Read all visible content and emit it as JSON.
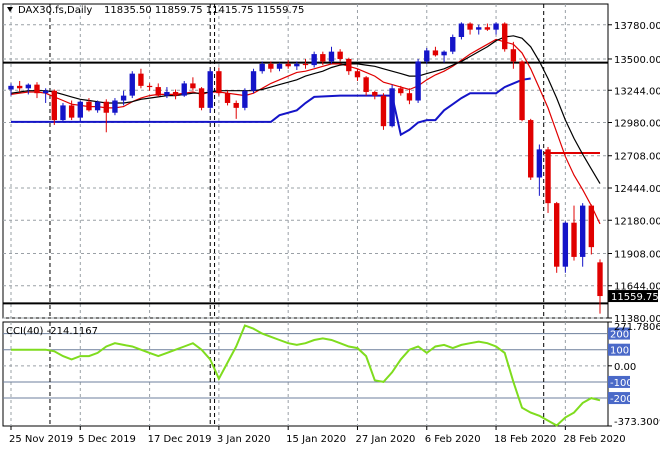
{
  "header": {
    "symbol": "DAX30.fs,Daily",
    "ohlc": "11835.50 11859.75 11415.75 11559.75"
  },
  "colors": {
    "bull": "#1414c8",
    "bear": "#e00000",
    "fast_ma": "#e00000",
    "slow_ma": "#000000",
    "support_line": "#1414c8",
    "cci": "#7fdc1e",
    "price_tag_bg": "#000000",
    "level_tag_bg": "#4a69c8"
  },
  "chart_data": [
    {
      "type": "candlestick",
      "title": "DAX30.fs,Daily",
      "ylim": [
        11380,
        13950
      ],
      "y_ticks": [
        "13780.00",
        "13500.00",
        "13244.00",
        "12980.00",
        "12708.00",
        "12444.00",
        "12180.00",
        "11908.00",
        "11644.00",
        "11380.00"
      ],
      "y_tick_values": [
        13780,
        13500,
        13244,
        12980,
        12708,
        12444,
        12180,
        11908,
        11644,
        11380
      ],
      "x_labels": [
        "25 Nov 2019",
        "5 Dec 2019",
        "17 Dec 2019",
        "3 Jan 2020",
        "15 Jan 2020",
        "27 Jan 2020",
        "6 Feb 2020",
        "18 Feb 2020",
        "28 Feb 2020"
      ],
      "x_label_index": [
        0,
        8,
        16,
        24,
        32,
        40,
        48,
        56,
        64
      ],
      "vlines_index": [
        4.5,
        23,
        23.5,
        61.5
      ],
      "last_price": 11559.75,
      "last_price_label": "11559.75",
      "levels": [
        {
          "value": 13470,
          "color": "#000000",
          "start": 0
        },
        {
          "value": 11500,
          "color": "#000000",
          "start": 0
        },
        {
          "value": 12730,
          "color": "#e00000",
          "start": 62
        }
      ],
      "candles": [
        [
          13250,
          13300,
          13200,
          13280
        ],
        [
          13280,
          13320,
          13230,
          13260
        ],
        [
          13260,
          13300,
          13210,
          13290
        ],
        [
          13290,
          13310,
          13180,
          13220
        ],
        [
          13220,
          13260,
          13140,
          13240
        ],
        [
          13240,
          13250,
          12960,
          13000
        ],
        [
          13000,
          13140,
          12980,
          13120
        ],
        [
          13120,
          13160,
          13000,
          13020
        ],
        [
          13020,
          13160,
          12990,
          13150
        ],
        [
          13150,
          13180,
          13070,
          13080
        ],
        [
          13080,
          13160,
          13060,
          13150
        ],
        [
          13150,
          13170,
          12900,
          13060
        ],
        [
          13060,
          13180,
          13040,
          13160
        ],
        [
          13160,
          13240,
          13120,
          13200
        ],
        [
          13200,
          13400,
          13180,
          13380
        ],
        [
          13380,
          13420,
          13260,
          13280
        ],
        [
          13280,
          13300,
          13240,
          13270
        ],
        [
          13270,
          13300,
          13190,
          13200
        ],
        [
          13200,
          13270,
          13180,
          13230
        ],
        [
          13230,
          13250,
          13170,
          13200
        ],
        [
          13200,
          13320,
          13190,
          13300
        ],
        [
          13300,
          13350,
          13240,
          13260
        ],
        [
          13260,
          13270,
          13080,
          13100
        ],
        [
          13100,
          13420,
          13060,
          13400
        ],
        [
          13400,
          13430,
          13200,
          13220
        ],
        [
          13220,
          13240,
          13120,
          13140
        ],
        [
          13140,
          13160,
          13010,
          13100
        ],
        [
          13100,
          13260,
          13080,
          13240
        ],
        [
          13240,
          13420,
          13220,
          13400
        ],
        [
          13400,
          13480,
          13380,
          13460
        ],
        [
          13460,
          13480,
          13390,
          13420
        ],
        [
          13420,
          13470,
          13400,
          13460
        ],
        [
          13460,
          13490,
          13420,
          13440
        ],
        [
          13440,
          13480,
          13410,
          13460
        ],
        [
          13460,
          13500,
          13420,
          13450
        ],
        [
          13450,
          13560,
          13430,
          13540
        ],
        [
          13540,
          13560,
          13450,
          13480
        ],
        [
          13480,
          13600,
          13460,
          13560
        ],
        [
          13560,
          13580,
          13480,
          13500
        ],
        [
          13500,
          13510,
          13370,
          13400
        ],
        [
          13400,
          13420,
          13320,
          13350
        ],
        [
          13350,
          13360,
          13200,
          13230
        ],
        [
          13230,
          13240,
          13170,
          13200
        ],
        [
          13200,
          13220,
          12920,
          12950
        ],
        [
          12950,
          13290,
          12940,
          13260
        ],
        [
          13260,
          13280,
          13200,
          13220
        ],
        [
          13220,
          13260,
          13130,
          13160
        ],
        [
          13160,
          13500,
          13140,
          13480
        ],
        [
          13480,
          13590,
          13460,
          13570
        ],
        [
          13570,
          13600,
          13520,
          13530
        ],
        [
          13530,
          13570,
          13470,
          13560
        ],
        [
          13560,
          13700,
          13540,
          13680
        ],
        [
          13680,
          13800,
          13660,
          13790
        ],
        [
          13790,
          13800,
          13700,
          13740
        ],
        [
          13740,
          13780,
          13700,
          13760
        ],
        [
          13760,
          13790,
          13730,
          13740
        ],
        [
          13740,
          13800,
          13700,
          13790
        ],
        [
          13790,
          13800,
          13560,
          13580
        ],
        [
          13580,
          13640,
          13420,
          13480
        ],
        [
          13480,
          13490,
          12990,
          13000
        ],
        [
          13000,
          13010,
          12510,
          12530
        ],
        [
          12530,
          12800,
          12380,
          12760
        ],
        [
          12760,
          12780,
          12240,
          12320
        ],
        [
          12320,
          12330,
          11750,
          11800
        ],
        [
          11800,
          12170,
          11750,
          12160
        ],
        [
          12160,
          12300,
          11850,
          11880
        ],
        [
          11880,
          12320,
          11800,
          12300
        ],
        [
          12300,
          12310,
          11900,
          11960
        ],
        [
          11835.5,
          11859.75,
          11415.75,
          11559.75
        ]
      ],
      "support_step_line": [
        [
          0,
          12985
        ],
        [
          30,
          12985
        ],
        [
          31,
          13040
        ],
        [
          33,
          13080
        ],
        [
          34,
          13140
        ],
        [
          35,
          13190
        ],
        [
          38,
          13200
        ],
        [
          43,
          13200
        ],
        [
          44,
          13200
        ],
        [
          45,
          12880
        ],
        [
          46,
          12920
        ],
        [
          47,
          12980
        ],
        [
          48,
          13000
        ],
        [
          49,
          13000
        ],
        [
          50,
          13080
        ],
        [
          51,
          13130
        ],
        [
          52,
          13180
        ],
        [
          53,
          13220
        ],
        [
          56,
          13220
        ],
        [
          57,
          13270
        ],
        [
          58,
          13300
        ],
        [
          59,
          13330
        ],
        [
          60,
          13340
        ]
      ],
      "series": [
        {
          "name": "",
          "color": "#e00000",
          "values": [
            13210,
            13220,
            13230,
            13230,
            13220,
            13190,
            13160,
            13130,
            13120,
            13110,
            13110,
            13100,
            13100,
            13110,
            13150,
            13180,
            13200,
            13210,
            13210,
            13210,
            13220,
            13230,
            13210,
            13230,
            13230,
            13220,
            13210,
            13200,
            13220,
            13260,
            13300,
            13330,
            13360,
            13390,
            13400,
            13420,
            13440,
            13460,
            13460,
            13440,
            13420,
            13390,
            13360,
            13310,
            13290,
            13270,
            13250,
            13280,
            13330,
            13370,
            13400,
            13440,
            13490,
            13540,
            13580,
            13620,
            13660,
            13640,
            13620,
            13550,
            13420,
            13260,
            13100,
            12900,
            12700,
            12550,
            12430,
            12300,
            12150
          ]
        },
        {
          "name": "",
          "color": "#000000",
          "values": [
            13220,
            13230,
            13240,
            13240,
            13240,
            13230,
            13210,
            13190,
            13170,
            13160,
            13150,
            13140,
            13140,
            13140,
            13150,
            13170,
            13180,
            13190,
            13200,
            13200,
            13210,
            13220,
            13220,
            13230,
            13240,
            13240,
            13240,
            13240,
            13240,
            13250,
            13270,
            13290,
            13310,
            13330,
            13360,
            13380,
            13400,
            13430,
            13450,
            13460,
            13460,
            13450,
            13440,
            13420,
            13400,
            13380,
            13360,
            13360,
            13380,
            13400,
            13420,
            13450,
            13480,
            13520,
            13560,
            13600,
            13650,
            13680,
            13690,
            13670,
            13600,
            13480,
            13340,
            13180,
            13000,
            12850,
            12720,
            12600,
            12480
          ]
        }
      ]
    },
    {
      "type": "line",
      "title": "CCI(40) -214.1167",
      "ylim": [
        -373.3009,
        271.7806
      ],
      "y_ticks": [
        "271.7806",
        "200",
        "100",
        "0.00",
        "-100",
        "-200",
        "-373.3009"
      ],
      "y_tick_values": [
        271.7806,
        200,
        100,
        0,
        -100,
        -200,
        -373.3009
      ],
      "tag_values": [
        200,
        100,
        -100,
        -200
      ],
      "series": [
        {
          "name": "",
          "color": "#7fdc1e",
          "values": [
            100,
            100,
            100,
            100,
            100,
            90,
            60,
            40,
            60,
            60,
            80,
            120,
            140,
            130,
            120,
            100,
            80,
            60,
            80,
            100,
            120,
            140,
            100,
            40,
            -80,
            20,
            120,
            250,
            230,
            200,
            180,
            160,
            140,
            130,
            140,
            160,
            170,
            160,
            140,
            120,
            110,
            60,
            -90,
            -100,
            -40,
            40,
            100,
            120,
            80,
            120,
            130,
            110,
            130,
            140,
            150,
            140,
            120,
            80,
            -100,
            -260,
            -290,
            -310,
            -340,
            -370,
            -320,
            -290,
            -230,
            -200,
            -214.1167
          ]
        }
      ]
    }
  ]
}
